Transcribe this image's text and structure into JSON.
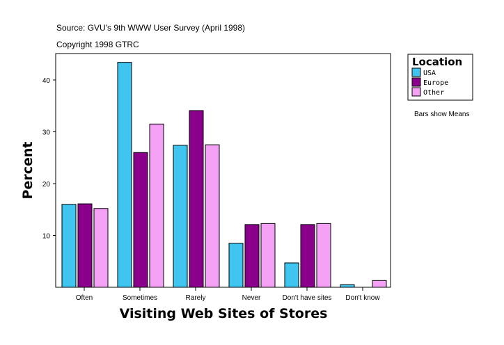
{
  "chart_data": {
    "type": "bar",
    "source": "Source: GVU's 9th WWW User Survey (April 1998)",
    "copyright": "Copyright 1998 GTRC",
    "xlabel": "Visiting Web Sites of Stores",
    "ylabel": "Percent",
    "ylim": [
      0,
      45
    ],
    "yticks": [
      10,
      20,
      30,
      40
    ],
    "categories": [
      "Often",
      "Sometimes",
      "Rarely",
      "Never",
      "Don't have sites",
      "Don't know"
    ],
    "legend_title": "Location",
    "legend_position": "right",
    "note": "Bars show Means",
    "series": [
      {
        "name": "USA",
        "color": "#40c4f0",
        "values": [
          16.0,
          43.4,
          27.4,
          8.5,
          4.7,
          0.5
        ]
      },
      {
        "name": "Europe",
        "color": "#8b008b",
        "values": [
          16.1,
          26.0,
          34.1,
          12.1,
          12.1,
          0
        ]
      },
      {
        "name": "Other",
        "color": "#f4a0f4",
        "values": [
          15.2,
          31.5,
          27.5,
          12.3,
          12.3,
          1.3
        ]
      }
    ]
  }
}
